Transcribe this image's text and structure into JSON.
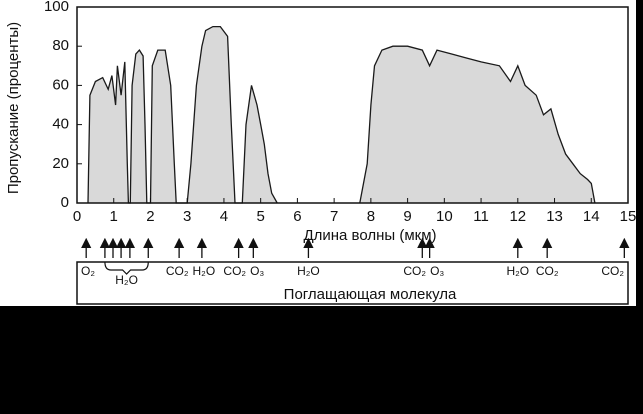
{
  "chart_data": {
    "type": "area",
    "x": [
      0.3,
      0.35,
      0.5,
      0.7,
      0.85,
      0.95,
      1.05,
      1.1,
      1.2,
      1.3,
      1.37,
      1.4,
      1.45,
      1.5,
      1.6,
      1.7,
      1.8,
      1.85,
      1.9,
      2.0,
      2.05,
      2.2,
      2.4,
      2.55,
      2.65,
      2.7,
      3.0,
      3.1,
      3.25,
      3.4,
      3.5,
      3.7,
      3.9,
      4.1,
      4.2,
      4.3,
      4.5,
      4.6,
      4.75,
      4.9,
      5.0,
      5.1,
      5.2,
      5.3,
      5.45,
      6.5,
      7.7,
      7.9,
      8.0,
      8.1,
      8.3,
      8.6,
      9.0,
      9.4,
      9.6,
      9.8,
      10.2,
      10.6,
      11.0,
      11.5,
      11.8,
      12.0,
      12.2,
      12.5,
      12.7,
      12.9,
      13.1,
      13.3,
      13.5,
      13.7,
      13.9,
      14.0,
      14.1
    ],
    "values": [
      0,
      55,
      62,
      64,
      58,
      65,
      50,
      70,
      55,
      72,
      20,
      0,
      0,
      60,
      76,
      78,
      75,
      40,
      0,
      0,
      70,
      78,
      78,
      60,
      20,
      0,
      0,
      20,
      60,
      80,
      88,
      90,
      90,
      85,
      40,
      0,
      0,
      40,
      60,
      50,
      40,
      30,
      15,
      5,
      0,
      null,
      0,
      20,
      50,
      70,
      78,
      80,
      80,
      78,
      70,
      78,
      76,
      74,
      72,
      70,
      62,
      70,
      60,
      55,
      45,
      48,
      35,
      25,
      20,
      15,
      12,
      10,
      0
    ],
    "color": "#d9d9d9",
    "line_color": "#1a1a1a",
    "xlim": [
      0,
      15
    ],
    "ylim": [
      0,
      100
    ],
    "xticks": [
      0,
      1,
      2,
      3,
      4,
      5,
      6,
      7,
      8,
      9,
      10,
      11,
      12,
      13,
      14,
      15
    ],
    "yticks": [
      0,
      20,
      40,
      60,
      80,
      100
    ],
    "xlabel": "Длина волны (мкм)",
    "ylabel": "Пропускание (проценты)"
  },
  "absorption": {
    "title": "Поглащающая молекула",
    "molecules": [
      {
        "label": "O₂",
        "x": 0.25
      },
      {
        "label": "H₂O",
        "x": [
          0.76,
          0.98,
          1.2,
          1.44,
          1.94
        ]
      },
      {
        "label": "CO₂",
        "x": 2.78
      },
      {
        "label": "H₂O",
        "x": 3.4
      },
      {
        "label": "CO₂",
        "x": 4.4
      },
      {
        "label": "O₃",
        "x": 4.8
      },
      {
        "label": "H₂O",
        "x": 6.3
      },
      {
        "label": "CO₂",
        "x": 9.4
      },
      {
        "label": "O₃",
        "x": 9.6
      },
      {
        "label": "H₂O",
        "x": 12.0
      },
      {
        "label": "CO₂",
        "x": 12.8
      },
      {
        "label": "CO₂",
        "x": 14.9
      }
    ]
  }
}
